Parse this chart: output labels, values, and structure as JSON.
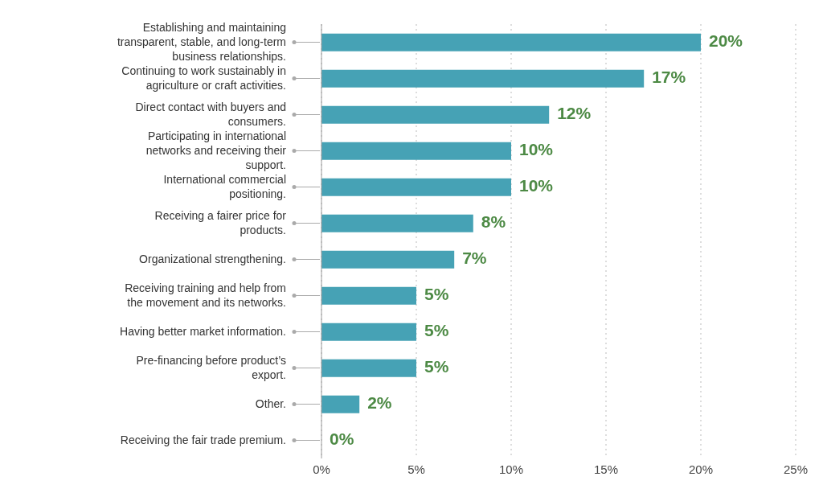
{
  "chart_data": {
    "type": "bar",
    "orientation": "horizontal",
    "categories": [
      "Establishing and maintaining transparent, stable, and long-term business relationships.",
      "Continuing to work sustainably in agriculture or craft activities.",
      "Direct contact with buyers and consumers.",
      "Participating in international networks and receiving their support.",
      "International commercial positioning.",
      "Receiving a fairer price for products.",
      "Organizational strengthening.",
      "Receiving training and help from the movement and its networks.",
      "Having better market information.",
      "Pre-financing before product’s export.",
      "Other.",
      "Receiving the fair trade premium."
    ],
    "values": [
      20,
      17,
      12,
      10,
      10,
      8,
      7,
      5,
      5,
      5,
      2,
      0
    ],
    "value_labels": [
      "20%",
      "17%",
      "12%",
      "10%",
      "10%",
      "8%",
      "7%",
      "5%",
      "5%",
      "5%",
      "2%",
      "0%"
    ],
    "color": "#46a2b5",
    "xlim": [
      0,
      25
    ],
    "xticks": [
      {
        "value": 0,
        "label": "0%"
      },
      {
        "value": 5,
        "label": "5%"
      },
      {
        "value": 10,
        "label": "10%"
      },
      {
        "value": 15,
        "label": "15%"
      },
      {
        "value": 20,
        "label": "20%"
      },
      {
        "value": 25,
        "label": "25%"
      }
    ],
    "grid": "x"
  }
}
